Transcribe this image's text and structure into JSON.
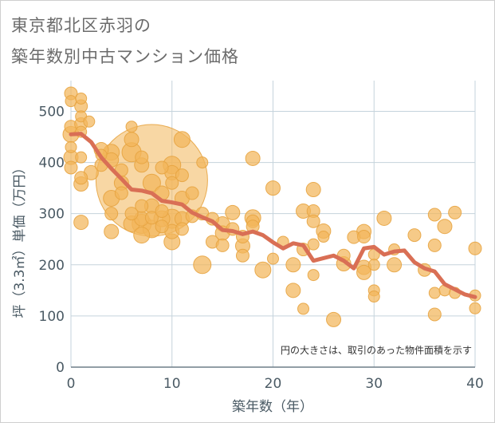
{
  "title_lines": [
    "東京都北区赤羽の",
    "築年数別中古マンション価格"
  ],
  "chart_data": {
    "type": "scatter",
    "xlabel": "築年数（年）",
    "ylabel": "坪（3.3㎡）単価（万円）",
    "note": "円の大きさは、取引のあった物件面積を示す",
    "xlim": [
      0,
      40
    ],
    "ylim": [
      0,
      560
    ],
    "xticks": [
      0,
      10,
      20,
      30,
      40
    ],
    "yticks": [
      0,
      100,
      200,
      300,
      400,
      500
    ],
    "grid": true,
    "colors": {
      "bubble": "#f2b65a",
      "bubble_edge": "#e7a441",
      "line": "#d96f55",
      "grid": "#c5d3dc",
      "axis_text": "#4a5a64"
    },
    "bubbles": [
      {
        "x": 0,
        "y": 535,
        "s": 8
      },
      {
        "x": 0,
        "y": 520,
        "s": 7
      },
      {
        "x": 0,
        "y": 470,
        "s": 8
      },
      {
        "x": 0,
        "y": 430,
        "s": 7
      },
      {
        "x": 0,
        "y": 410,
        "s": 9
      },
      {
        "x": 0,
        "y": 390,
        "s": 8
      },
      {
        "x": 0,
        "y": 455,
        "s": 10
      },
      {
        "x": 1,
        "y": 525,
        "s": 7
      },
      {
        "x": 1,
        "y": 510,
        "s": 8
      },
      {
        "x": 1,
        "y": 490,
        "s": 7
      },
      {
        "x": 1,
        "y": 475,
        "s": 8
      },
      {
        "x": 1,
        "y": 460,
        "s": 7
      },
      {
        "x": 1,
        "y": 410,
        "s": 7
      },
      {
        "x": 1,
        "y": 370,
        "s": 8
      },
      {
        "x": 1,
        "y": 358,
        "s": 9
      },
      {
        "x": 1,
        "y": 283,
        "s": 9
      },
      {
        "x": 1.8,
        "y": 480,
        "s": 7
      },
      {
        "x": 2,
        "y": 380,
        "s": 9
      },
      {
        "x": 3,
        "y": 425,
        "s": 9
      },
      {
        "x": 3,
        "y": 415,
        "s": 7
      },
      {
        "x": 3,
        "y": 395,
        "s": 8
      },
      {
        "x": 4,
        "y": 420,
        "s": 10
      },
      {
        "x": 4,
        "y": 405,
        "s": 9
      },
      {
        "x": 4,
        "y": 330,
        "s": 10
      },
      {
        "x": 4,
        "y": 300,
        "s": 8
      },
      {
        "x": 4,
        "y": 265,
        "s": 9
      },
      {
        "x": 5,
        "y": 385,
        "s": 8
      },
      {
        "x": 5,
        "y": 360,
        "s": 9
      },
      {
        "x": 5,
        "y": 340,
        "s": 8
      },
      {
        "x": 6,
        "y": 470,
        "s": 7
      },
      {
        "x": 6,
        "y": 445,
        "s": 9
      },
      {
        "x": 6,
        "y": 420,
        "s": 12
      },
      {
        "x": 6,
        "y": 300,
        "s": 8
      },
      {
        "x": 6,
        "y": 280,
        "s": 10
      },
      {
        "x": 7,
        "y": 410,
        "s": 8
      },
      {
        "x": 7,
        "y": 395,
        "s": 9
      },
      {
        "x": 7,
        "y": 315,
        "s": 8
      },
      {
        "x": 7,
        "y": 290,
        "s": 9
      },
      {
        "x": 7,
        "y": 280,
        "s": 12
      },
      {
        "x": 7,
        "y": 258,
        "s": 10
      },
      {
        "x": 8,
        "y": 365,
        "s": 70
      },
      {
        "x": 8,
        "y": 360,
        "s": 11
      },
      {
        "x": 8,
        "y": 315,
        "s": 9
      },
      {
        "x": 8,
        "y": 292,
        "s": 8
      },
      {
        "x": 8,
        "y": 270,
        "s": 11
      },
      {
        "x": 9,
        "y": 390,
        "s": 8
      },
      {
        "x": 9,
        "y": 340,
        "s": 9
      },
      {
        "x": 9,
        "y": 305,
        "s": 8
      },
      {
        "x": 9,
        "y": 290,
        "s": 10
      },
      {
        "x": 9,
        "y": 275,
        "s": 8
      },
      {
        "x": 10,
        "y": 395,
        "s": 11
      },
      {
        "x": 10,
        "y": 380,
        "s": 9
      },
      {
        "x": 10,
        "y": 360,
        "s": 8
      },
      {
        "x": 10,
        "y": 290,
        "s": 12
      },
      {
        "x": 10,
        "y": 265,
        "s": 9
      },
      {
        "x": 10,
        "y": 245,
        "s": 10
      },
      {
        "x": 11,
        "y": 445,
        "s": 10
      },
      {
        "x": 11,
        "y": 375,
        "s": 8
      },
      {
        "x": 11,
        "y": 330,
        "s": 9
      },
      {
        "x": 11,
        "y": 290,
        "s": 9
      },
      {
        "x": 11,
        "y": 270,
        "s": 8
      },
      {
        "x": 12,
        "y": 340,
        "s": 8
      },
      {
        "x": 12,
        "y": 295,
        "s": 8
      },
      {
        "x": 13,
        "y": 400,
        "s": 7
      },
      {
        "x": 13,
        "y": 300,
        "s": 8
      },
      {
        "x": 13,
        "y": 200,
        "s": 11
      },
      {
        "x": 14,
        "y": 290,
        "s": 8
      },
      {
        "x": 14,
        "y": 245,
        "s": 8
      },
      {
        "x": 15,
        "y": 280,
        "s": 9
      },
      {
        "x": 15,
        "y": 262,
        "s": 9
      },
      {
        "x": 15,
        "y": 238,
        "s": 8
      },
      {
        "x": 16,
        "y": 302,
        "s": 9
      },
      {
        "x": 16,
        "y": 270,
        "s": 8
      },
      {
        "x": 17,
        "y": 255,
        "s": 8
      },
      {
        "x": 17,
        "y": 237,
        "s": 9
      },
      {
        "x": 17,
        "y": 218,
        "s": 8
      },
      {
        "x": 18,
        "y": 408,
        "s": 9
      },
      {
        "x": 18,
        "y": 292,
        "s": 10
      },
      {
        "x": 18,
        "y": 285,
        "s": 8
      },
      {
        "x": 18,
        "y": 275,
        "s": 8
      },
      {
        "x": 19,
        "y": 190,
        "s": 10
      },
      {
        "x": 20,
        "y": 350,
        "s": 9
      },
      {
        "x": 20,
        "y": 212,
        "s": 7
      },
      {
        "x": 21,
        "y": 245,
        "s": 7
      },
      {
        "x": 22,
        "y": 200,
        "s": 9
      },
      {
        "x": 22,
        "y": 150,
        "s": 9
      },
      {
        "x": 23,
        "y": 305,
        "s": 9
      },
      {
        "x": 23,
        "y": 230,
        "s": 8
      },
      {
        "x": 23,
        "y": 114,
        "s": 7
      },
      {
        "x": 24,
        "y": 347,
        "s": 9
      },
      {
        "x": 24,
        "y": 305,
        "s": 8
      },
      {
        "x": 24,
        "y": 285,
        "s": 8
      },
      {
        "x": 24,
        "y": 240,
        "s": 7
      },
      {
        "x": 24,
        "y": 180,
        "s": 7
      },
      {
        "x": 25,
        "y": 266,
        "s": 9
      },
      {
        "x": 25,
        "y": 255,
        "s": 7
      },
      {
        "x": 26,
        "y": 93,
        "s": 9
      },
      {
        "x": 27,
        "y": 218,
        "s": 8
      },
      {
        "x": 27,
        "y": 202,
        "s": 9
      },
      {
        "x": 28,
        "y": 254,
        "s": 8
      },
      {
        "x": 29,
        "y": 265,
        "s": 9
      },
      {
        "x": 29,
        "y": 255,
        "s": 8
      },
      {
        "x": 29,
        "y": 195,
        "s": 9
      },
      {
        "x": 29,
        "y": 185,
        "s": 9
      },
      {
        "x": 30,
        "y": 220,
        "s": 7
      },
      {
        "x": 30,
        "y": 200,
        "s": 7
      },
      {
        "x": 30,
        "y": 150,
        "s": 7
      },
      {
        "x": 30,
        "y": 138,
        "s": 7
      },
      {
        "x": 31,
        "y": 291,
        "s": 9
      },
      {
        "x": 32,
        "y": 230,
        "s": 7
      },
      {
        "x": 32,
        "y": 200,
        "s": 9
      },
      {
        "x": 34,
        "y": 258,
        "s": 8
      },
      {
        "x": 35,
        "y": 190,
        "s": 8
      },
      {
        "x": 36,
        "y": 298,
        "s": 8
      },
      {
        "x": 36,
        "y": 238,
        "s": 8
      },
      {
        "x": 36,
        "y": 145,
        "s": 7
      },
      {
        "x": 36,
        "y": 103,
        "s": 8
      },
      {
        "x": 37,
        "y": 275,
        "s": 9
      },
      {
        "x": 37,
        "y": 150,
        "s": 7
      },
      {
        "x": 38,
        "y": 302,
        "s": 8
      },
      {
        "x": 38,
        "y": 145,
        "s": 7
      },
      {
        "x": 40,
        "y": 232,
        "s": 8
      },
      {
        "x": 40,
        "y": 140,
        "s": 7
      },
      {
        "x": 40,
        "y": 115,
        "s": 7
      }
    ],
    "series": [
      {
        "x": [
          0,
          1,
          2,
          3,
          4,
          5,
          6,
          7,
          8,
          9,
          10,
          11,
          12,
          13,
          14,
          15,
          16,
          17,
          18,
          19,
          20,
          21,
          22,
          23,
          24,
          25,
          26,
          27,
          28,
          29,
          30,
          31,
          32,
          33,
          34,
          35,
          36,
          37,
          38,
          39,
          40
        ],
        "y": [
          455,
          456,
          440,
          410,
          388,
          368,
          347,
          345,
          340,
          325,
          322,
          318,
          302,
          293,
          285,
          268,
          266,
          260,
          265,
          258,
          244,
          232,
          242,
          238,
          208,
          213,
          218,
          208,
          193,
          232,
          235,
          220,
          226,
          228,
          205,
          193,
          187,
          162,
          152,
          142,
          137
        ]
      }
    ]
  }
}
